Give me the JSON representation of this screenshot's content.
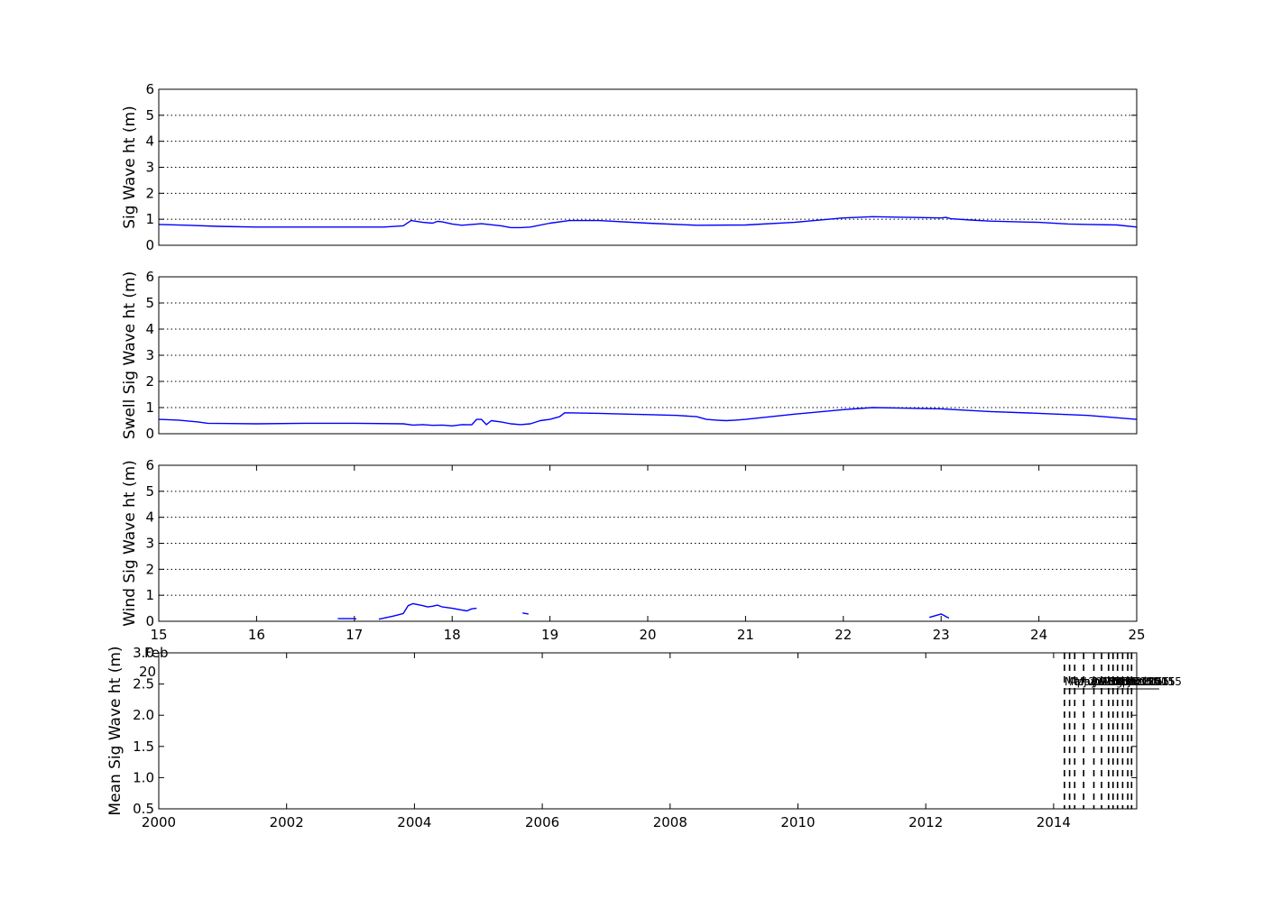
{
  "chart_data": [
    {
      "type": "line",
      "ylabel": "Sig Wave ht (m)",
      "xlim": [
        15,
        25
      ],
      "ylim": [
        0,
        6
      ],
      "yticks": [
        0,
        1,
        2,
        3,
        4,
        5,
        6
      ],
      "grid": "y-dotted",
      "color": "#0000ff",
      "series": [
        {
          "x": [
            15,
            15.3,
            15.6,
            16,
            16.5,
            17,
            17.3,
            17.5,
            17.58,
            17.7,
            17.8,
            17.85,
            17.9,
            18,
            18.1,
            18.2,
            18.3,
            18.5,
            18.6,
            18.7,
            18.8,
            19,
            19.2,
            19.5,
            20,
            20.5,
            21,
            21.5,
            22,
            22.3,
            22.6,
            23,
            23.05,
            23.1,
            23.3,
            23.5,
            24,
            24.3,
            24.5,
            24.8,
            25
          ],
          "y": [
            0.8,
            0.77,
            0.73,
            0.7,
            0.7,
            0.7,
            0.7,
            0.75,
            0.95,
            0.88,
            0.85,
            0.92,
            0.9,
            0.82,
            0.77,
            0.8,
            0.83,
            0.75,
            0.68,
            0.68,
            0.7,
            0.85,
            0.95,
            0.95,
            0.85,
            0.77,
            0.78,
            0.88,
            1.05,
            1.1,
            1.08,
            1.05,
            1.07,
            1.02,
            0.97,
            0.93,
            0.88,
            0.82,
            0.8,
            0.78,
            0.7
          ]
        }
      ]
    },
    {
      "type": "line",
      "ylabel": "Swell Sig Wave ht (m)",
      "xlim": [
        15,
        25
      ],
      "ylim": [
        0,
        6
      ],
      "yticks": [
        0,
        1,
        2,
        3,
        4,
        5,
        6
      ],
      "grid": "y-dotted",
      "color": "#0000ff",
      "series": [
        {
          "x": [
            15,
            15.2,
            15.4,
            15.5,
            16,
            16.5,
            17,
            17.5,
            17.6,
            17.7,
            17.8,
            17.9,
            18,
            18.1,
            18.2,
            18.25,
            18.3,
            18.35,
            18.4,
            18.5,
            18.6,
            18.7,
            18.8,
            18.9,
            19,
            19.1,
            19.15,
            19.5,
            19.8,
            20,
            20.3,
            20.5,
            20.6,
            20.7,
            20.8,
            20.9,
            21,
            21.5,
            22,
            22.3,
            22.6,
            23,
            23.5,
            24,
            24.5,
            25
          ],
          "y": [
            0.55,
            0.52,
            0.45,
            0.4,
            0.38,
            0.4,
            0.4,
            0.38,
            0.33,
            0.35,
            0.32,
            0.33,
            0.3,
            0.35,
            0.34,
            0.55,
            0.55,
            0.35,
            0.5,
            0.45,
            0.38,
            0.35,
            0.38,
            0.5,
            0.55,
            0.65,
            0.8,
            0.78,
            0.75,
            0.73,
            0.7,
            0.65,
            0.55,
            0.52,
            0.5,
            0.52,
            0.55,
            0.75,
            0.92,
            1,
            0.98,
            0.95,
            0.85,
            0.78,
            0.7,
            0.55
          ]
        }
      ]
    },
    {
      "type": "line",
      "ylabel": "Wind Sig Wave ht (m)",
      "xlim": [
        15,
        25
      ],
      "ylim": [
        0,
        6
      ],
      "yticks": [
        0,
        1,
        2,
        3,
        4,
        5,
        6
      ],
      "xticks": [
        15,
        16,
        17,
        18,
        19,
        20,
        21,
        22,
        23,
        24,
        25
      ],
      "xtick_labels": [
        "15",
        "16",
        "17",
        "18",
        "19",
        "20",
        "21",
        "22",
        "23",
        "24",
        "25"
      ],
      "xaxis_note_lines": [
        "Feb",
        "20"
      ],
      "grid": "y-dotted",
      "color": "#0000ff",
      "series": [
        {
          "x": [
            16.83,
            16.9,
            17,
            17.02
          ],
          "y": [
            0.1,
            0.1,
            0.1,
            0.09
          ]
        },
        {
          "x": [
            17.25,
            17.4,
            17.5,
            17.55,
            17.6,
            17.7,
            17.75,
            17.8,
            17.85,
            17.9,
            18,
            18.15,
            18.2,
            18.25
          ],
          "y": [
            0.08,
            0.2,
            0.3,
            0.6,
            0.68,
            0.6,
            0.55,
            0.58,
            0.62,
            0.55,
            0.5,
            0.4,
            0.48,
            0.5
          ]
        },
        {
          "x": [
            18.72,
            18.78
          ],
          "y": [
            0.32,
            0.28
          ]
        },
        {
          "x": [
            22.88,
            23,
            23.08
          ],
          "y": [
            0.15,
            0.28,
            0.12
          ]
        }
      ]
    },
    {
      "type": "line",
      "ylabel": "Mean Sig Wave ht (m)",
      "xlim": [
        2000,
        2015.3
      ],
      "ylim": [
        0.5,
        3.0
      ],
      "yticks": [
        0.5,
        1.0,
        1.5,
        2.0,
        2.5,
        3.0
      ],
      "ytick_labels": [
        "0.5",
        "1.0",
        "1.5",
        "2.0",
        "2.5",
        "3.0"
      ],
      "xticks": [
        2000,
        2002,
        2004,
        2006,
        2008,
        2010,
        2012,
        2014
      ],
      "xtick_labels": [
        "2000",
        "2002",
        "2004",
        "2006",
        "2008",
        "2010",
        "2012",
        "2014"
      ],
      "grid": "none",
      "vlines": [
        2014.17,
        2014.25,
        2014.33,
        2014.47,
        2014.63,
        2014.75,
        2014.86,
        2014.93,
        2015.0,
        2015.08,
        2015.16,
        2015.22
      ],
      "vline_style": "black dashed",
      "annotations": [
        "Mar 2015",
        "Apr 2015",
        "May 2015",
        "Jun 2015",
        "Jul 2015",
        "Aug 2015",
        "Sep 2015",
        "Oct 2015",
        "Nov 2015",
        "Dec 2015",
        "Jan 2015",
        "Feb 2015"
      ],
      "series": []
    }
  ]
}
